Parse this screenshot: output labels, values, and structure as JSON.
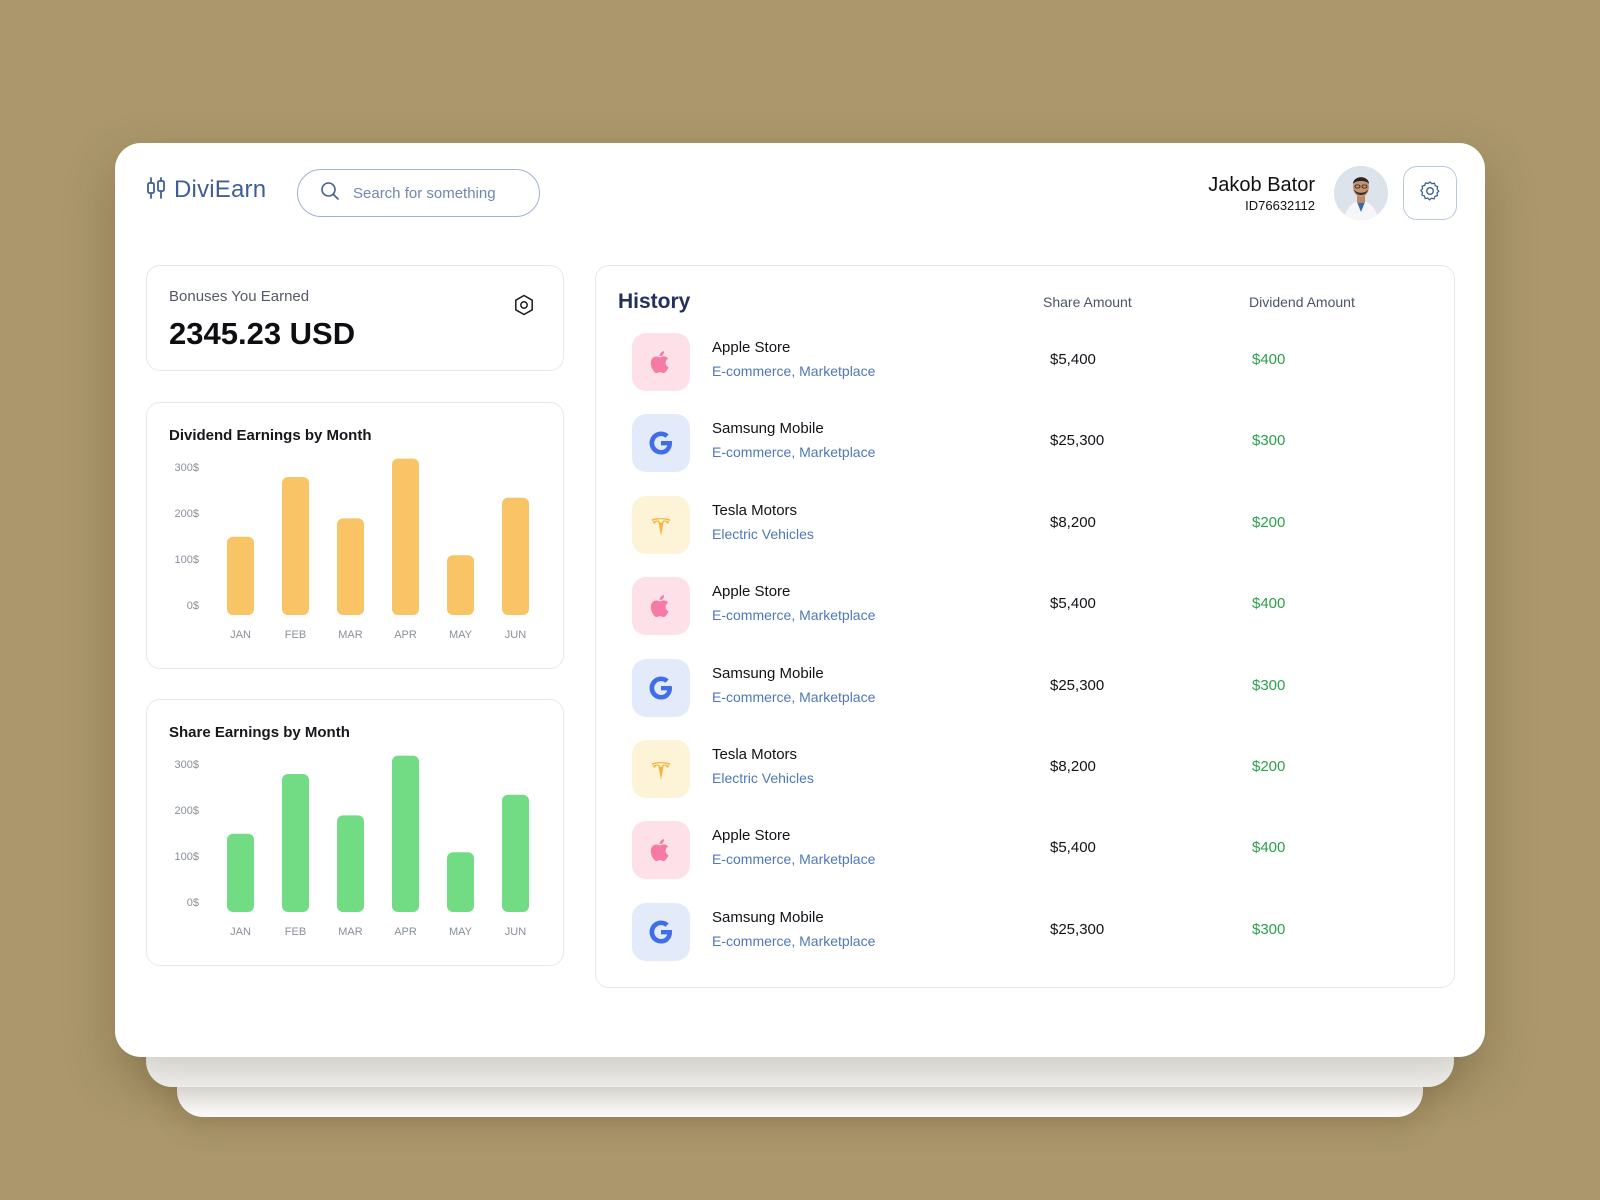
{
  "header": {
    "app_name": "DiviEarn",
    "search_placeholder": "Search for something",
    "user_name": "Jakob Bator",
    "user_id": "ID76632112"
  },
  "bonus": {
    "label": "Bonuses You Earned",
    "value": "2345.23 USD"
  },
  "charts": [
    {
      "title": "Dividend Earnings by Month",
      "color": "#f9c465"
    },
    {
      "title": "Share Earnings by Month",
      "color": "#72dc85"
    }
  ],
  "chart_data": [
    {
      "type": "bar",
      "title": "Dividend Earnings by Month",
      "categories": [
        "JAN",
        "FEB",
        "MAR",
        "APR",
        "MAY",
        "JUN"
      ],
      "values": [
        170,
        300,
        210,
        340,
        130,
        255
      ],
      "yticks": [
        "300$",
        "200$",
        "100$",
        "0$"
      ],
      "ylim": [
        0,
        300
      ],
      "xlabel": "",
      "ylabel": "",
      "grid": false
    },
    {
      "type": "bar",
      "title": "Share Earnings by Month",
      "categories": [
        "JAN",
        "FEB",
        "MAR",
        "APR",
        "MAY",
        "JUN"
      ],
      "values": [
        170,
        300,
        210,
        340,
        130,
        255
      ],
      "yticks": [
        "300$",
        "200$",
        "100$",
        "0$"
      ],
      "ylim": [
        0,
        300
      ],
      "xlabel": "",
      "ylabel": "",
      "grid": false
    }
  ],
  "history": {
    "title": "History",
    "col_share": "Share Amount",
    "col_dividend": "Dividend Amount",
    "rows": [
      {
        "name": "Apple Store",
        "category": "E-commerce, Marketplace",
        "share": "$5,400",
        "dividend": "$400",
        "icon": "apple-icon"
      },
      {
        "name": "Samsung Mobile",
        "category": "E-commerce, Marketplace",
        "share": "$25,300",
        "dividend": "$300",
        "icon": "google-icon"
      },
      {
        "name": "Tesla Motors",
        "category": "Electric Vehicles",
        "share": "$8,200",
        "dividend": "$200",
        "icon": "tesla-icon"
      },
      {
        "name": "Apple Store",
        "category": "E-commerce, Marketplace",
        "share": "$5,400",
        "dividend": "$400",
        "icon": "apple-icon"
      },
      {
        "name": "Samsung Mobile",
        "category": "E-commerce, Marketplace",
        "share": "$25,300",
        "dividend": "$300",
        "icon": "google-icon"
      },
      {
        "name": "Tesla Motors",
        "category": "Electric Vehicles",
        "share": "$8,200",
        "dividend": "$200",
        "icon": "tesla-icon"
      },
      {
        "name": "Apple Store",
        "category": "E-commerce, Marketplace",
        "share": "$5,400",
        "dividend": "$400",
        "icon": "apple-icon"
      },
      {
        "name": "Samsung Mobile",
        "category": "E-commerce, Marketplace",
        "share": "$25,300",
        "dividend": "$300",
        "icon": "google-icon"
      }
    ]
  },
  "colors": {
    "background": "#ab976b",
    "accent": "#3f5f93",
    "positive": "#2aa14a",
    "apple_bg": "#fde0e8",
    "google_bg": "#e3ebfb",
    "tesla_bg": "#fdf3d6"
  }
}
